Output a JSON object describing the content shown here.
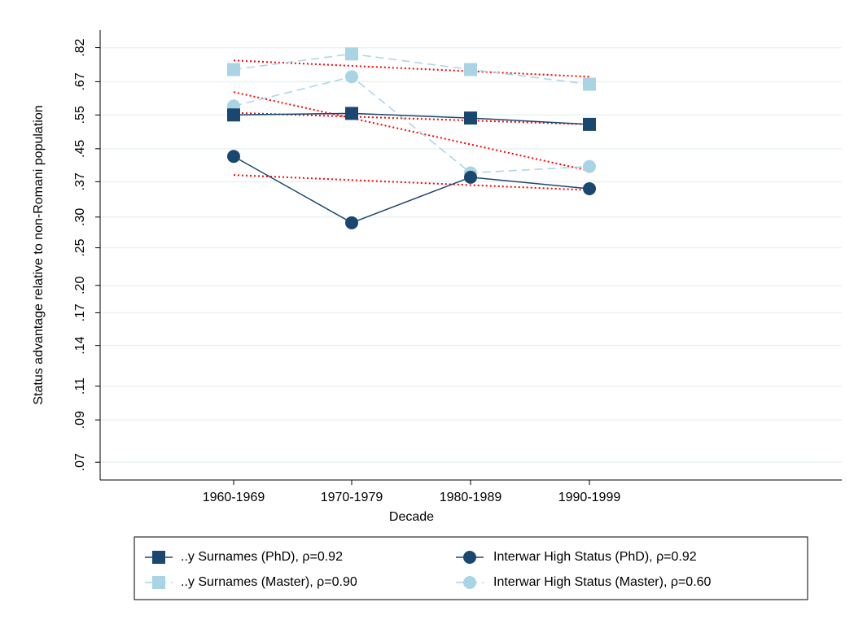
{
  "chart_data": {
    "type": "line",
    "xlabel": "Decade",
    "ylabel": "Status advantage relative to non-Romani population",
    "categories": [
      "1960-1969",
      "1970-1979",
      "1980-1989",
      "1990-1999"
    ],
    "y_scale": "log",
    "y_ticks": [
      0.07,
      0.09,
      0.11,
      0.14,
      0.17,
      0.2,
      0.25,
      0.3,
      0.37,
      0.45,
      0.55,
      0.67,
      0.82
    ],
    "y_tick_labels": [
      ".07",
      ".09",
      ".11",
      ".14",
      ".17",
      ".20",
      ".25",
      ".30",
      ".37",
      ".45",
      ".55",
      ".67",
      ".82"
    ],
    "ylim": [
      0.063,
      0.91
    ],
    "grid": true,
    "legend_position": "bottom",
    "series": [
      {
        "name": "..y Surnames (PhD), ρ=0.92",
        "marker": "square",
        "color": "#1a476f",
        "dash": "solid",
        "values": [
          0.55,
          0.555,
          0.54,
          0.52
        ],
        "fit": [
          0.557,
          0.545,
          0.532,
          0.52
        ]
      },
      {
        "name": "..y Surnames (Master), ρ=0.90",
        "marker": "square",
        "color": "#a9d4e4",
        "dash": "dashed",
        "values": [
          0.72,
          0.79,
          0.72,
          0.66
        ],
        "fit": [
          0.76,
          0.73,
          0.71,
          0.69
        ]
      },
      {
        "name": "Interwar High Status (PhD), ρ=0.92",
        "marker": "circle",
        "color": "#1a476f",
        "dash": "solid",
        "values": [
          0.43,
          0.29,
          0.38,
          0.355
        ],
        "fit": [
          0.385,
          0.375,
          0.365,
          0.352
        ]
      },
      {
        "name": "Interwar High Status (Master), ρ=0.60",
        "marker": "circle",
        "color": "#a9d4e4",
        "dash": "dashed",
        "values": [
          0.58,
          0.69,
          0.39,
          0.405
        ],
        "fit": [
          0.63,
          0.53,
          0.46,
          0.395
        ]
      }
    ],
    "fit_color": "#ff0000"
  }
}
